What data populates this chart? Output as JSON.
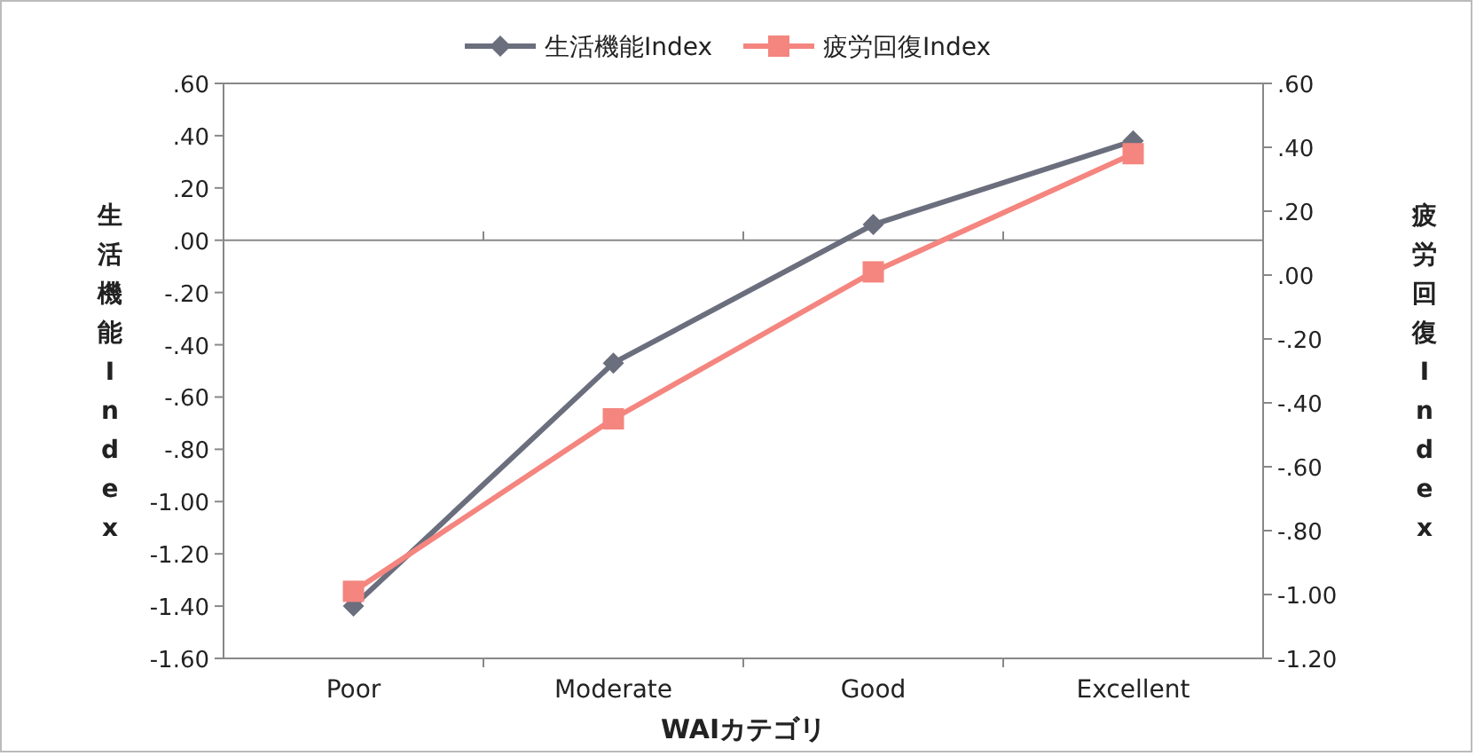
{
  "chart_data": {
    "type": "line",
    "categories": [
      "Poor",
      "Moderate",
      "Good",
      "Excellent"
    ],
    "series": [
      {
        "name": "生活機能Index",
        "color": "#6b6e7d",
        "values": [
          -1.4,
          -0.47,
          0.06,
          0.38
        ],
        "marker": "diamond"
      },
      {
        "name": "疲労回復Index",
        "color": "#f4857f",
        "values": [
          -0.99,
          -0.45,
          0.01,
          0.38
        ],
        "axis": "y2",
        "marker": "square"
      }
    ],
    "xlabel": "WAIカテゴリ",
    "ylabel": "生活機能Index",
    "y2label": "疲労回復Index",
    "ylim": [
      -1.6,
      0.6
    ],
    "yticks": [
      {
        "value": 0.6,
        "label": ".60"
      },
      {
        "value": 0.4,
        "label": ".40"
      },
      {
        "value": 0.2,
        "label": ".20"
      },
      {
        "value": 0,
        "label": ".00"
      },
      {
        "value": -0.2,
        "label": "-.20"
      },
      {
        "value": -0.4,
        "label": "-.40"
      },
      {
        "value": -0.6,
        "label": "-.60"
      },
      {
        "value": -0.8,
        "label": "-.80"
      },
      {
        "value": -1.0,
        "label": "-1.00"
      },
      {
        "value": -1.2,
        "label": "-1.20"
      },
      {
        "value": -1.4,
        "label": "-1.40"
      },
      {
        "value": -1.6,
        "label": "-1.60"
      }
    ],
    "y2lim": [
      -1.2,
      0.6
    ],
    "y2ticks": [
      {
        "value": 0.6,
        "label": ".60"
      },
      {
        "value": 0.4,
        "label": ".40"
      },
      {
        "value": 0.2,
        "label": ".20"
      },
      {
        "value": 0,
        "label": ".00"
      },
      {
        "value": -0.2,
        "label": "-.20"
      },
      {
        "value": -0.4,
        "label": "-.40"
      },
      {
        "value": -0.6,
        "label": "-.60"
      },
      {
        "value": -0.8,
        "label": "-.80"
      },
      {
        "value": -1.0,
        "label": "-1.00"
      },
      {
        "value": -1.2,
        "label": "-1.20"
      }
    ],
    "ref_lines": [
      {
        "axis": "y",
        "value": 0,
        "color": "#888888"
      }
    ],
    "legend": "top",
    "grid": false,
    "line_style": "solid"
  }
}
